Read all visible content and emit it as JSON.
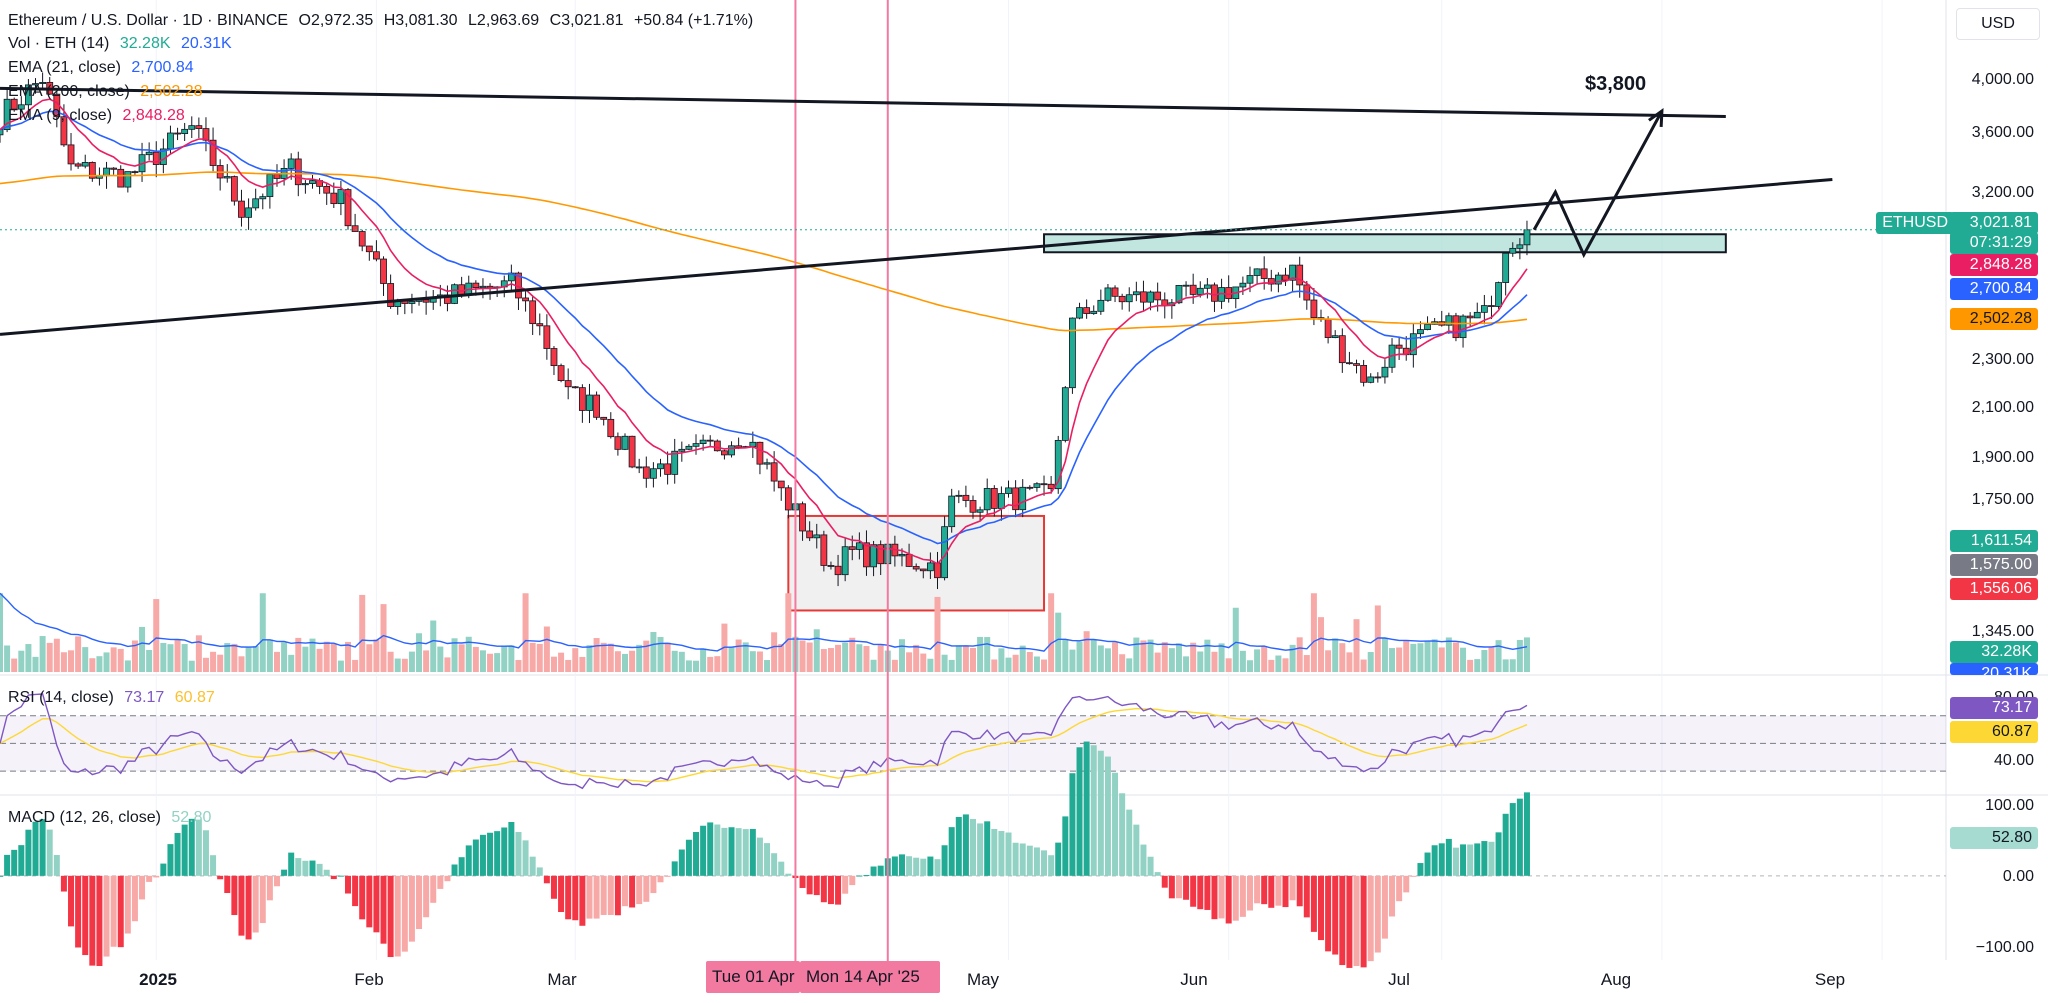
{
  "header": {
    "symbol_line": "Ethereum / U.S. Dollar · 1D · BINANCE",
    "open": "O2,972.35",
    "high": "H3,081.30",
    "low": "L2,963.69",
    "close": "C3,021.81",
    "change": "+50.84 (+1.71%)"
  },
  "legends": {
    "vol": {
      "label": "Vol · ETH (14)",
      "v1": "32.28K",
      "v2": "20.31K"
    },
    "ema21": {
      "label": "EMA (21, close)",
      "value": "2,700.84"
    },
    "ema200": {
      "label": "EMA (200, close)",
      "value": "2,502.28"
    },
    "ema9": {
      "label": "EMA (9, close)",
      "value": "2,848.28"
    },
    "rsi": {
      "label": "RSI (14, close)",
      "v1": "73.17",
      "v2": "60.87"
    },
    "macd": {
      "label": "MACD (12, 26, close)",
      "value": "52.80"
    }
  },
  "currency_button": "USD",
  "price_axis_ticks": [
    "4,000.00",
    "3,600.00",
    "3,200.00",
    "2,300.00",
    "2,100.00",
    "1,900.00",
    "1,750.00",
    "1,345.00"
  ],
  "rsi_axis_ticks": [
    "80.00",
    "40.00"
  ],
  "macd_axis_ticks": [
    "100.00",
    "0.00",
    "−100.00"
  ],
  "badges": {
    "ticker": "ETHUSD",
    "last": "3,021.81",
    "countdown": "07:31:29",
    "ema9": "2,848.28",
    "ema21": "2,700.84",
    "ema200": "2,502.28",
    "b1": "1,611.54",
    "b2": "1,575.00",
    "b3": "1,556.06",
    "vol1": "32.28K",
    "vol2": "20.31K",
    "rsi1": "73.17",
    "rsi2": "60.87",
    "macd": "52.80"
  },
  "target_label": "$3,800",
  "time_axis": [
    "2025",
    "Feb",
    "Mar",
    "May",
    "Jun",
    "Jul",
    "Aug",
    "Sep"
  ],
  "crosshair_labels": [
    "Tue 01 Apr '25",
    "Mon 14 Apr '25"
  ],
  "colors": {
    "up": "#22ab94",
    "down": "#f23645",
    "up_vol": "#92d2c4",
    "down_vol": "#f7a9a7",
    "ema9": "#e91e63",
    "ema21": "#2962ff",
    "ema200": "#ff9800",
    "rsi": "#7e57c2",
    "rsi_ma": "#fdd835",
    "zone": "#a5dbd1",
    "box": "#e53935",
    "vline": "#f279a0"
  },
  "chart_data": {
    "type": "candlestick",
    "title": "Ethereum / U.S. Dollar · 1D · BINANCE",
    "x_range": [
      "2024-12-10",
      "2025-09-10"
    ],
    "x_ticks": [
      "2025-01-01",
      "2025-02-01",
      "2025-03-01",
      "2025-05-01",
      "2025-06-01",
      "2025-07-01",
      "2025-08-01",
      "2025-09-01"
    ],
    "price_scale": "log",
    "ylim": [
      1220,
      4400
    ],
    "keypoints": [
      [
        "2024-12-10",
        3760
      ],
      [
        "2024-12-16",
        4050
      ],
      [
        "2024-12-20",
        3400
      ],
      [
        "2024-12-28",
        3350
      ],
      [
        "2025-01-06",
        3680
      ],
      [
        "2025-01-13",
        3150
      ],
      [
        "2025-01-20",
        3400
      ],
      [
        "2025-01-27",
        3200
      ],
      [
        "2025-02-03",
        2650
      ],
      [
        "2025-02-10",
        2650
      ],
      [
        "2025-02-20",
        2720
      ],
      [
        "2025-02-24",
        2500
      ],
      [
        "2025-02-28",
        2200
      ],
      [
        "2025-03-04",
        2150
      ],
      [
        "2025-03-10",
        1900
      ],
      [
        "2025-03-14",
        1920
      ],
      [
        "2025-03-25",
        2040
      ],
      [
        "2025-03-30",
        1820
      ],
      [
        "2025-04-06",
        1580
      ],
      [
        "2025-04-09",
        1620
      ],
      [
        "2025-04-14",
        1610
      ],
      [
        "2025-04-21",
        1580
      ],
      [
        "2025-04-23",
        1790
      ],
      [
        "2025-05-07",
        1810
      ],
      [
        "2025-05-10",
        2520
      ],
      [
        "2025-05-14",
        2650
      ],
      [
        "2025-05-28",
        2650
      ],
      [
        "2025-06-10",
        2800
      ],
      [
        "2025-06-13",
        2550
      ],
      [
        "2025-06-21",
        2250
      ],
      [
        "2025-06-24",
        2400
      ],
      [
        "2025-06-30",
        2480
      ],
      [
        "2025-07-07",
        2560
      ],
      [
        "2025-07-09",
        2780
      ],
      [
        "2025-07-10",
        2950
      ],
      [
        "2025-07-13",
        3021.81
      ]
    ],
    "volume_range": [
      0,
      80000
    ],
    "rsi_ylim": [
      20,
      90
    ],
    "rsi_levels": [
      70,
      50,
      30
    ],
    "macd_ylim": [
      -110,
      105
    ],
    "annotations": {
      "resistance_line": [
        [
          "2024-12-10",
          3970
        ],
        [
          "2025-08-10",
          3760
        ]
      ],
      "trend_line": [
        [
          "2024-12-10",
          2470
        ],
        [
          "2025-08-25",
          3330
        ]
      ],
      "zone": {
        "from": "2025-05-06",
        "to": "2025-08-10",
        "low": 2880,
        "high": 2950
      },
      "box": {
        "from": "2025-03-31",
        "to": "2025-05-06",
        "low": 1450,
        "high": 1740
      },
      "projection": [
        [
          "2025-07-14",
          3021.81
        ],
        [
          "2025-07-17",
          3250
        ],
        [
          "2025-07-21",
          2880
        ],
        [
          "2025-08-01",
          3800
        ]
      ],
      "target": 3800,
      "crosshairs": [
        "2025-04-01",
        "2025-04-14"
      ]
    }
  }
}
